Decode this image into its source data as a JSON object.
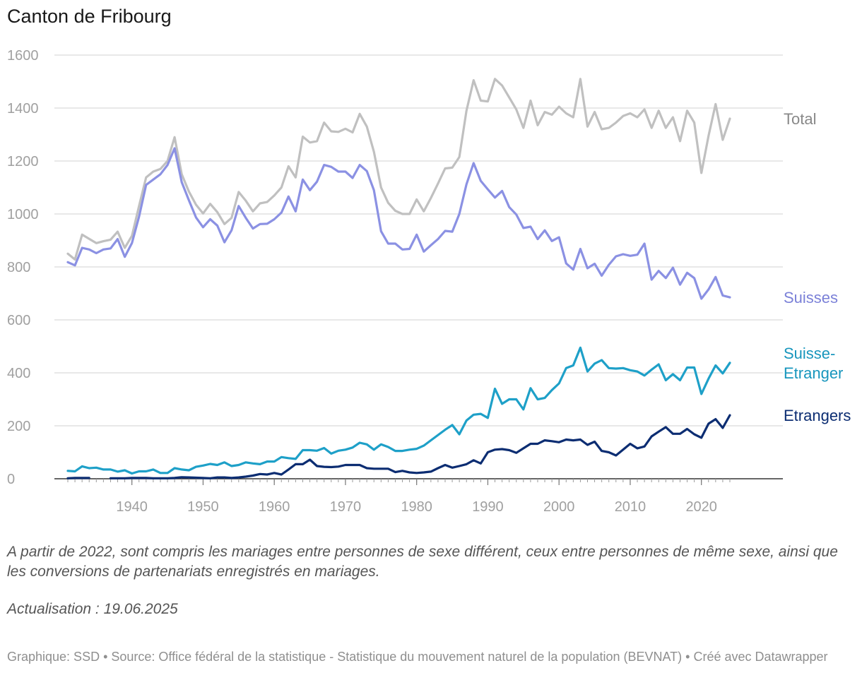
{
  "title": "Canton de Fribourg",
  "note": "A partir de 2022, sont compris les mariages entre personnes de sexe différent, ceux entre personnes de même sexe, ainsi que les conversions de partenariats enregistrés en mariages.",
  "update": "Actualisation : 19.06.2025",
  "footer": "Graphique: SSD • Source: Office fédéral de la statistique - Statistique du mouvement naturel de la population (BEVNAT) • Créé avec Datawrapper",
  "chart_data": {
    "type": "line",
    "x_start": 1931,
    "x_end": 2024,
    "xlim": [
      1930,
      2026
    ],
    "ylim": [
      0,
      1600
    ],
    "y_ticks": [
      0,
      200,
      400,
      600,
      800,
      1000,
      1200,
      1400,
      1600
    ],
    "x_ticks": [
      1940,
      1950,
      1960,
      1970,
      1980,
      1990,
      2000,
      2010,
      2020
    ],
    "grid": true,
    "series": [
      {
        "name": "Total",
        "color": "#c0c0c0",
        "label_color": "#888888",
        "values": [
          850,
          828,
          922,
          906,
          890,
          897,
          903,
          933,
          872,
          917,
          1030,
          1138,
          1160,
          1170,
          1200,
          1290,
          1150,
          1085,
          1035,
          1002,
          1038,
          1007,
          962,
          985,
          1083,
          1050,
          1010,
          1040,
          1045,
          1070,
          1100,
          1180,
          1138,
          1292,
          1270,
          1275,
          1345,
          1312,
          1310,
          1322,
          1308,
          1378,
          1330,
          1235,
          1100,
          1042,
          1012,
          1000,
          1000,
          1055,
          1010,
          1060,
          1115,
          1172,
          1175,
          1215,
          1390,
          1505,
          1428,
          1425,
          1510,
          1485,
          1440,
          1395,
          1325,
          1428,
          1335,
          1385,
          1375,
          1405,
          1380,
          1365,
          1510,
          1330,
          1385,
          1320,
          1325,
          1345,
          1370,
          1380,
          1365,
          1395,
          1325,
          1390,
          1325,
          1365,
          1275,
          1390,
          1345,
          1155,
          1295,
          1415,
          1280,
          1360
        ]
      },
      {
        "name": "Suisses",
        "color": "#8b91e3",
        "label_color": "#7b81d8",
        "values": [
          818,
          806,
          872,
          866,
          852,
          866,
          870,
          905,
          838,
          890,
          990,
          1110,
          1130,
          1150,
          1185,
          1248,
          1120,
          1052,
          987,
          950,
          980,
          956,
          893,
          938,
          1030,
          985,
          945,
          962,
          963,
          980,
          1005,
          1066,
          1010,
          1130,
          1090,
          1122,
          1185,
          1178,
          1160,
          1160,
          1136,
          1185,
          1162,
          1090,
          935,
          888,
          888,
          866,
          868,
          922,
          858,
          882,
          905,
          936,
          933,
          1000,
          1112,
          1192,
          1125,
          1093,
          1062,
          1087,
          1026,
          998,
          947,
          952,
          905,
          938,
          898,
          912,
          813,
          790,
          868,
          795,
          812,
          767,
          808,
          840,
          848,
          842,
          846,
          888,
          752,
          785,
          758,
          797,
          733,
          778,
          758,
          680,
          715,
          762,
          692,
          685
        ]
      },
      {
        "name": "Suisse-Etranger",
        "label_lines": [
          "Suisse-",
          "Etranger"
        ],
        "color": "#1ea0c8",
        "label_color": "#1896bd",
        "values": [
          30,
          28,
          47,
          40,
          42,
          35,
          35,
          27,
          32,
          20,
          28,
          28,
          35,
          22,
          22,
          40,
          35,
          32,
          45,
          50,
          56,
          52,
          62,
          48,
          52,
          62,
          58,
          55,
          65,
          65,
          82,
          78,
          75,
          108,
          108,
          106,
          116,
          95,
          106,
          110,
          118,
          136,
          130,
          110,
          130,
          120,
          105,
          105,
          110,
          113,
          125,
          145,
          165,
          185,
          203,
          168,
          220,
          242,
          245,
          230,
          340,
          283,
          300,
          300,
          262,
          342,
          300,
          305,
          335,
          360,
          418,
          428,
          495,
          405,
          435,
          448,
          418,
          416,
          418,
          410,
          405,
          390,
          412,
          432,
          372,
          395,
          372,
          420,
          420,
          320,
          378,
          428,
          398,
          438
        ]
      },
      {
        "name": "Etrangers",
        "color": "#0c2d72",
        "label_color": "#0c2d72",
        "gaps_after_index": [
          3
        ],
        "start_index_after_gap": 6,
        "values": [
          2,
          3,
          3,
          3,
          null,
          null,
          2,
          2,
          2,
          3,
          3,
          3,
          2,
          2,
          2,
          3,
          6,
          5,
          4,
          3,
          2,
          5,
          5,
          3,
          5,
          8,
          12,
          18,
          16,
          22,
          16,
          35,
          55,
          55,
          72,
          48,
          45,
          44,
          46,
          52,
          52,
          52,
          40,
          38,
          38,
          38,
          25,
          30,
          24,
          22,
          24,
          27,
          40,
          52,
          42,
          48,
          55,
          70,
          58,
          100,
          110,
          112,
          108,
          98,
          115,
          132,
          132,
          145,
          142,
          138,
          148,
          145,
          148,
          128,
          140,
          105,
          100,
          88,
          110,
          132,
          115,
          122,
          160,
          178,
          195,
          170,
          170,
          188,
          168,
          155,
          208,
          225,
          192,
          240
        ]
      }
    ]
  }
}
